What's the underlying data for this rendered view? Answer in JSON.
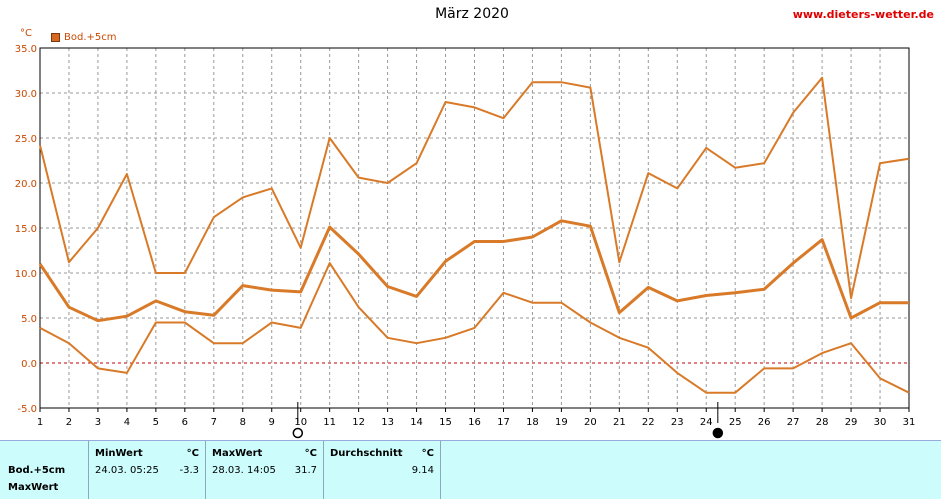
{
  "header": {
    "title": "März 2020",
    "site": "www.dieters-wetter.de",
    "unit": "°C"
  },
  "legend": {
    "label": "Bod.+5cm"
  },
  "colors": {
    "series": "#d87a28",
    "grid": "#999999",
    "zero": "#c00000"
  },
  "chart_data": {
    "type": "line",
    "title": "März 2020",
    "ylabel": "°C",
    "xlim": [
      1,
      31
    ],
    "ylim": [
      -5,
      35
    ],
    "x_ticks": [
      "1",
      "2",
      "3",
      "4",
      "5",
      "6",
      "7",
      "8",
      "9",
      "10",
      "11",
      "12",
      "13",
      "14",
      "15",
      "16",
      "17",
      "18",
      "19",
      "20",
      "21",
      "22",
      "23",
      "24",
      "25",
      "26",
      "27",
      "28",
      "29",
      "30",
      "31"
    ],
    "y_ticks": [
      "35.0",
      "30.0",
      "25.0",
      "20.0",
      "15.0",
      "10.0",
      "5.0",
      "0.0",
      "-5.0"
    ],
    "grid": true,
    "moon_symbols": [
      {
        "phase": "full",
        "day": 9.9
      },
      {
        "phase": "new",
        "day": 24.4
      }
    ],
    "series": [
      {
        "values": [
          24.2,
          11.2,
          15.0,
          21.0,
          10.0,
          10.0,
          16.2,
          18.4,
          19.4,
          12.8,
          25.0,
          20.6,
          20.0,
          22.2,
          29.0,
          28.4,
          27.2,
          31.2,
          31.2,
          30.6,
          11.2,
          21.1,
          19.4,
          23.9,
          21.7,
          22.2,
          27.8,
          31.7,
          7.2,
          22.2,
          22.7
        ]
      },
      {
        "values": [
          11.0,
          6.2,
          4.7,
          5.2,
          6.9,
          5.7,
          5.3,
          8.6,
          8.1,
          7.9,
          15.1,
          12.1,
          8.5,
          7.4,
          11.3,
          13.5,
          13.5,
          14.0,
          15.8,
          15.2,
          5.6,
          8.4,
          6.9,
          7.5,
          7.8,
          8.2,
          11.1,
          13.7,
          5.0,
          6.7,
          6.7
        ]
      },
      {
        "values": [
          3.9,
          2.2,
          -0.6,
          -1.1,
          4.5,
          4.5,
          2.2,
          2.2,
          4.5,
          3.9,
          11.1,
          6.2,
          2.8,
          2.2,
          2.8,
          3.9,
          7.8,
          6.7,
          6.7,
          4.5,
          2.8,
          1.7,
          -1.1,
          -3.3,
          -3.3,
          -0.6,
          -0.6,
          1.1,
          2.2,
          -1.7,
          -3.3
        ]
      }
    ]
  },
  "table": {
    "row_label": "Bod.+5cm",
    "row_label2": "MaxWert",
    "min": {
      "header": "MinWert",
      "unit": "°C",
      "datetime": "24.03.  05:25",
      "value": "-3.3"
    },
    "max": {
      "header": "MaxWert",
      "unit": "°C",
      "datetime": "28.03.  14:05",
      "value": "31.7"
    },
    "avg": {
      "header": "Durchschnitt",
      "unit": "°C",
      "value": "9.14"
    }
  }
}
